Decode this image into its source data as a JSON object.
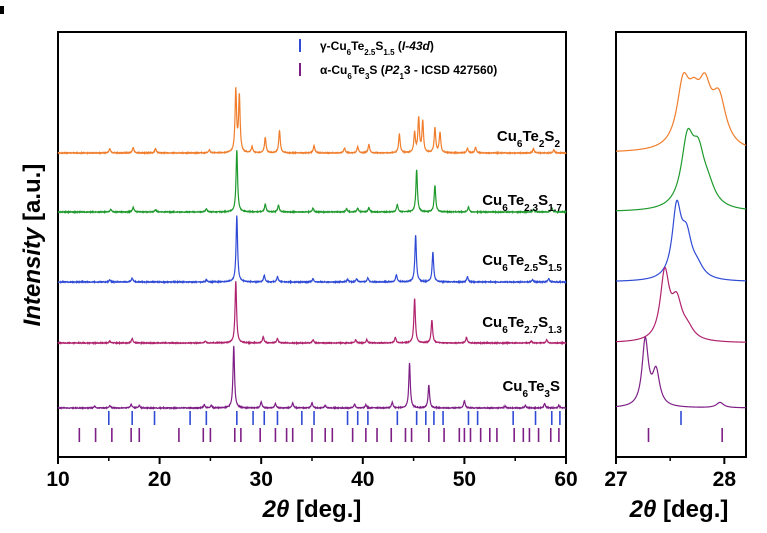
{
  "chart_data": [
    {
      "type": "line",
      "panel": "main",
      "x_range": [
        10,
        60
      ],
      "x_ticks": [
        "10",
        "20",
        "30",
        "40",
        "50",
        "60"
      ],
      "xlabel": {
        "italic": "2θ",
        "rest": " [deg.]"
      },
      "ylabel": {
        "italic": "Intensity",
        "rest": " [a.u.]"
      },
      "y_ticks_shown": false,
      "grid": false,
      "legend_position": "top",
      "legend": [
        {
          "symbol": "bar",
          "color": "#2F4BD6",
          "parts": [
            [
              "γ-Cu",
              ""
            ],
            [
              "6",
              "sub"
            ],
            [
              "Te",
              ""
            ],
            [
              "2.5",
              "sub"
            ],
            [
              "S",
              ""
            ],
            [
              "1.5",
              "sub"
            ],
            [
              " (",
              "plain"
            ],
            [
              "I",
              "it"
            ],
            [
              "-43",
              "bi"
            ],
            [
              "d",
              "it"
            ],
            [
              ")",
              "plain"
            ]
          ]
        },
        {
          "symbol": "bar",
          "color": "#7E1F86",
          "parts": [
            [
              "α-Cu",
              ""
            ],
            [
              "6",
              "sub"
            ],
            [
              "Te",
              ""
            ],
            [
              "3",
              "sub"
            ],
            [
              "S (",
              ""
            ],
            [
              "P",
              "it"
            ],
            [
              "2",
              "bi"
            ],
            [
              "1",
              "sub"
            ],
            [
              "3 - ICSD 427560)",
              ""
            ]
          ]
        }
      ],
      "series": [
        {
          "name": "Cu6Te2S2",
          "color": "#F07D2B",
          "label_parts": [
            [
              "Cu",
              ""
            ],
            [
              "6",
              "sub"
            ],
            [
              "Te",
              ""
            ],
            [
              "2",
              "sub"
            ],
            [
              "S",
              ""
            ],
            [
              "2",
              "sub"
            ]
          ],
          "peaks": [
            [
              15.1,
              0.07
            ],
            [
              17.4,
              0.09
            ],
            [
              19.6,
              0.07
            ],
            [
              24.9,
              0.05
            ],
            [
              27.5,
              1.0
            ],
            [
              27.85,
              0.9
            ],
            [
              29.1,
              0.1
            ],
            [
              30.4,
              0.25
            ],
            [
              31.8,
              0.36
            ],
            [
              35.2,
              0.12
            ],
            [
              38.2,
              0.08
            ],
            [
              39.5,
              0.1
            ],
            [
              40.6,
              0.14
            ],
            [
              43.6,
              0.3
            ],
            [
              45.1,
              0.32
            ],
            [
              45.5,
              0.55
            ],
            [
              45.9,
              0.5
            ],
            [
              47.1,
              0.4
            ],
            [
              47.6,
              0.33
            ],
            [
              50.3,
              0.07
            ],
            [
              51.1,
              0.09
            ],
            [
              56.8,
              0.07
            ],
            [
              58.8,
              0.05
            ]
          ]
        },
        {
          "name": "Cu6Te2.3S1.7",
          "color": "#1E9A2D",
          "label_parts": [
            [
              "Cu",
              ""
            ],
            [
              "6",
              "sub"
            ],
            [
              "Te",
              ""
            ],
            [
              "2.3",
              "sub"
            ],
            [
              "S",
              ""
            ],
            [
              "1.7",
              "sub"
            ]
          ],
          "peaks": [
            [
              15.2,
              0.04
            ],
            [
              17.4,
              0.08
            ],
            [
              19.6,
              0.04
            ],
            [
              24.6,
              0.05
            ],
            [
              27.6,
              1.0
            ],
            [
              30.4,
              0.13
            ],
            [
              31.7,
              0.11
            ],
            [
              35.1,
              0.06
            ],
            [
              38.4,
              0.05
            ],
            [
              39.5,
              0.06
            ],
            [
              40.6,
              0.07
            ],
            [
              43.4,
              0.12
            ],
            [
              45.3,
              0.68
            ],
            [
              47.1,
              0.43
            ],
            [
              50.4,
              0.08
            ],
            [
              56.8,
              0.04
            ],
            [
              58.6,
              0.07
            ]
          ]
        },
        {
          "name": "Cu6Te2.5S1.5",
          "color": "#2F4BD6",
          "label_parts": [
            [
              "Cu",
              ""
            ],
            [
              "6",
              "sub"
            ],
            [
              "Te",
              ""
            ],
            [
              "2.5",
              "sub"
            ],
            [
              "S",
              ""
            ],
            [
              "1.5",
              "sub"
            ]
          ],
          "peaks": [
            [
              15.1,
              0.03
            ],
            [
              17.3,
              0.06
            ],
            [
              24.6,
              0.03
            ],
            [
              27.6,
              1.0
            ],
            [
              30.3,
              0.1
            ],
            [
              31.6,
              0.08
            ],
            [
              35.1,
              0.05
            ],
            [
              38.5,
              0.04
            ],
            [
              39.4,
              0.05
            ],
            [
              40.5,
              0.06
            ],
            [
              43.3,
              0.11
            ],
            [
              45.2,
              0.71
            ],
            [
              46.9,
              0.45
            ],
            [
              50.3,
              0.08
            ],
            [
              56.7,
              0.03
            ],
            [
              58.3,
              0.05
            ]
          ]
        },
        {
          "name": "Cu6Te2.7S1.3",
          "color": "#B0236E",
          "label_parts": [
            [
              "Cu",
              ""
            ],
            [
              "6",
              "sub"
            ],
            [
              "Te",
              ""
            ],
            [
              "2.7",
              "sub"
            ],
            [
              "S",
              ""
            ],
            [
              "1.3",
              "sub"
            ]
          ],
          "peaks": [
            [
              15.1,
              0.03
            ],
            [
              17.3,
              0.07
            ],
            [
              24.5,
              0.03
            ],
            [
              27.5,
              1.0
            ],
            [
              30.2,
              0.1
            ],
            [
              31.6,
              0.07
            ],
            [
              35.1,
              0.05
            ],
            [
              39.3,
              0.05
            ],
            [
              40.4,
              0.05
            ],
            [
              43.2,
              0.09
            ],
            [
              45.1,
              0.72
            ],
            [
              46.8,
              0.37
            ],
            [
              50.2,
              0.09
            ],
            [
              56.6,
              0.03
            ],
            [
              58.1,
              0.05
            ]
          ]
        },
        {
          "name": "Cu6Te3S",
          "color": "#7E1F86",
          "label_parts": [
            [
              "Cu",
              ""
            ],
            [
              "6",
              "sub"
            ],
            [
              "Te",
              ""
            ],
            [
              "3",
              "sub"
            ],
            [
              "S",
              ""
            ]
          ],
          "peaks": [
            [
              13.6,
              0.03
            ],
            [
              15.1,
              0.04
            ],
            [
              17.2,
              0.06
            ],
            [
              18.0,
              0.04
            ],
            [
              24.4,
              0.05
            ],
            [
              25.1,
              0.04
            ],
            [
              27.3,
              1.0
            ],
            [
              30.0,
              0.1
            ],
            [
              31.4,
              0.07
            ],
            [
              33.1,
              0.08
            ],
            [
              35.0,
              0.08
            ],
            [
              36.3,
              0.04
            ],
            [
              39.2,
              0.06
            ],
            [
              40.3,
              0.05
            ],
            [
              42.9,
              0.09
            ],
            [
              44.6,
              0.72
            ],
            [
              46.5,
              0.37
            ],
            [
              50.0,
              0.12
            ],
            [
              54.0,
              0.03
            ],
            [
              56.0,
              0.04
            ],
            [
              57.9,
              0.07
            ],
            [
              59.3,
              0.04
            ]
          ]
        }
      ],
      "reference_ticks": [
        {
          "phase": "γ",
          "color": "#2F4BD6",
          "positions": [
            15.0,
            17.3,
            19.5,
            23.0,
            24.6,
            27.6,
            29.2,
            30.3,
            31.6,
            34.0,
            35.2,
            38.5,
            39.5,
            40.5,
            43.4,
            45.3,
            46.2,
            47.0,
            47.9,
            50.4,
            51.3,
            54.8,
            57.0,
            58.6,
            59.4
          ]
        },
        {
          "phase": "α",
          "color": "#7E1F86",
          "positions": [
            12.1,
            13.7,
            15.3,
            17.2,
            18.0,
            21.9,
            24.3,
            25.0,
            27.4,
            28.0,
            29.9,
            31.4,
            32.5,
            33.1,
            35.0,
            36.3,
            37.0,
            39.0,
            40.3,
            41.4,
            42.8,
            44.2,
            44.8,
            46.5,
            48.0,
            49.5,
            50.0,
            50.6,
            51.6,
            52.5,
            53.2,
            54.9,
            55.8,
            56.4,
            57.3,
            58.5,
            59.3
          ]
        }
      ]
    },
    {
      "type": "line",
      "panel": "zoom",
      "x_range": [
        27,
        28.2
      ],
      "x_ticks": [
        "27",
        "28"
      ],
      "xlabel": {
        "italic": "2θ",
        "rest": " [deg.]"
      },
      "grid": false,
      "series": [
        {
          "name": "Cu6Te2S2",
          "color": "#F07D2B",
          "peaks": [
            [
              27.62,
              0.95,
              0.07
            ],
            [
              27.72,
              0.55,
              0.07
            ],
            [
              27.82,
              0.78,
              0.07
            ],
            [
              27.95,
              0.75,
              0.08
            ]
          ]
        },
        {
          "name": "Cu6Te2.3S1.7",
          "color": "#1E9A2D",
          "peaks": [
            [
              27.66,
              1.0,
              0.07
            ],
            [
              27.76,
              0.7,
              0.07
            ],
            [
              27.85,
              0.25,
              0.08
            ]
          ]
        },
        {
          "name": "Cu6Te2.5S1.5",
          "color": "#2F4BD6",
          "peaks": [
            [
              27.56,
              1.0,
              0.05
            ],
            [
              27.65,
              0.58,
              0.06
            ],
            [
              27.75,
              0.15,
              0.07
            ]
          ]
        },
        {
          "name": "Cu6Te2.7S1.3",
          "color": "#B0236E",
          "peaks": [
            [
              27.45,
              1.0,
              0.05
            ],
            [
              27.56,
              0.55,
              0.06
            ],
            [
              27.66,
              0.15,
              0.07
            ]
          ]
        },
        {
          "name": "Cu6Te3S",
          "color": "#7E1F86",
          "peaks": [
            [
              27.27,
              1.0,
              0.035
            ],
            [
              27.37,
              0.52,
              0.04
            ],
            [
              27.96,
              0.08,
              0.04
            ]
          ]
        }
      ],
      "reference_ticks": [
        {
          "phase": "γ",
          "color": "#2F4BD6",
          "positions": [
            27.6
          ]
        },
        {
          "phase": "α",
          "color": "#7E1F86",
          "positions": [
            27.3,
            27.98
          ]
        }
      ]
    }
  ]
}
